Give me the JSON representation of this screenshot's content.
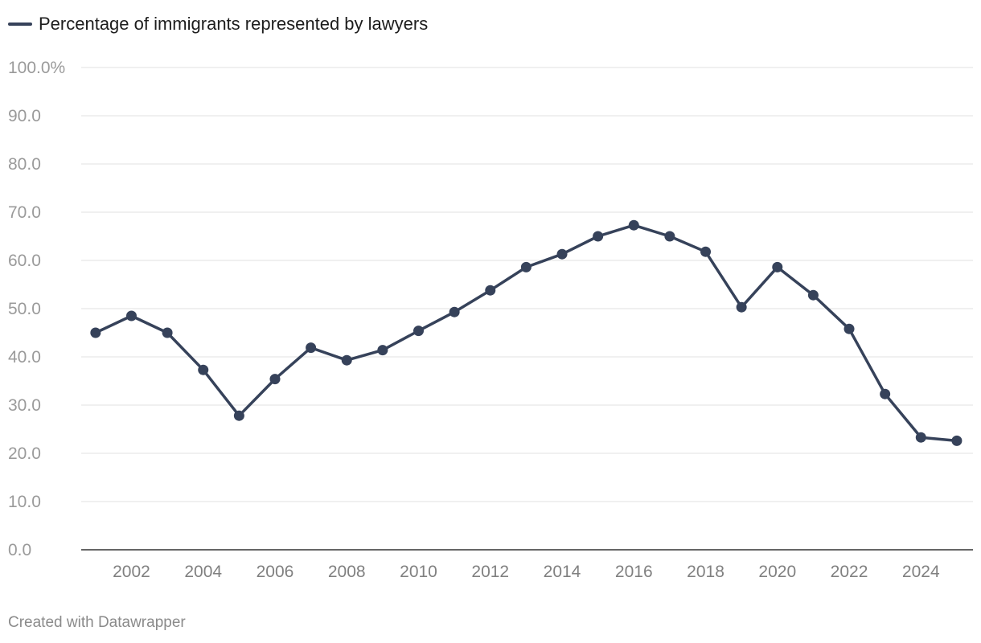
{
  "chart_data": {
    "type": "line",
    "legend_position": "top-left",
    "grid": true,
    "ylim": [
      0,
      100
    ],
    "y_ticks": [
      "100.0%",
      "90.0",
      "80.0",
      "70.0",
      "60.0",
      "50.0",
      "40.0",
      "30.0",
      "20.0",
      "10.0",
      "0.0"
    ],
    "x_ticks": [
      "2002",
      "2004",
      "2006",
      "2008",
      "2010",
      "2012",
      "2014",
      "2016",
      "2018",
      "2020",
      "2022",
      "2024"
    ],
    "series": [
      {
        "name": "Percentage of immigrants represented by lawyers",
        "color": "#36425a",
        "x": [
          2001,
          2002,
          2003,
          2004,
          2005,
          2006,
          2007,
          2008,
          2009,
          2010,
          2011,
          2012,
          2013,
          2014,
          2015,
          2016,
          2017,
          2018,
          2019,
          2020,
          2021,
          2022,
          2023,
          2024,
          2025
        ],
        "values": [
          45.0,
          48.5,
          45.0,
          37.3,
          27.8,
          35.4,
          41.9,
          39.3,
          41.4,
          45.4,
          49.3,
          53.8,
          58.6,
          61.3,
          65.0,
          67.3,
          65.0,
          61.8,
          50.3,
          58.6,
          52.8,
          45.8,
          32.3,
          23.3,
          22.6
        ]
      }
    ]
  },
  "footer": {
    "credit": "Created with Datawrapper"
  },
  "style": {
    "grid_color": "#e2e2e2",
    "axis_color": "#333333",
    "tick_label_color": "#9a9a9a",
    "x_tick_label_color": "#808080"
  }
}
